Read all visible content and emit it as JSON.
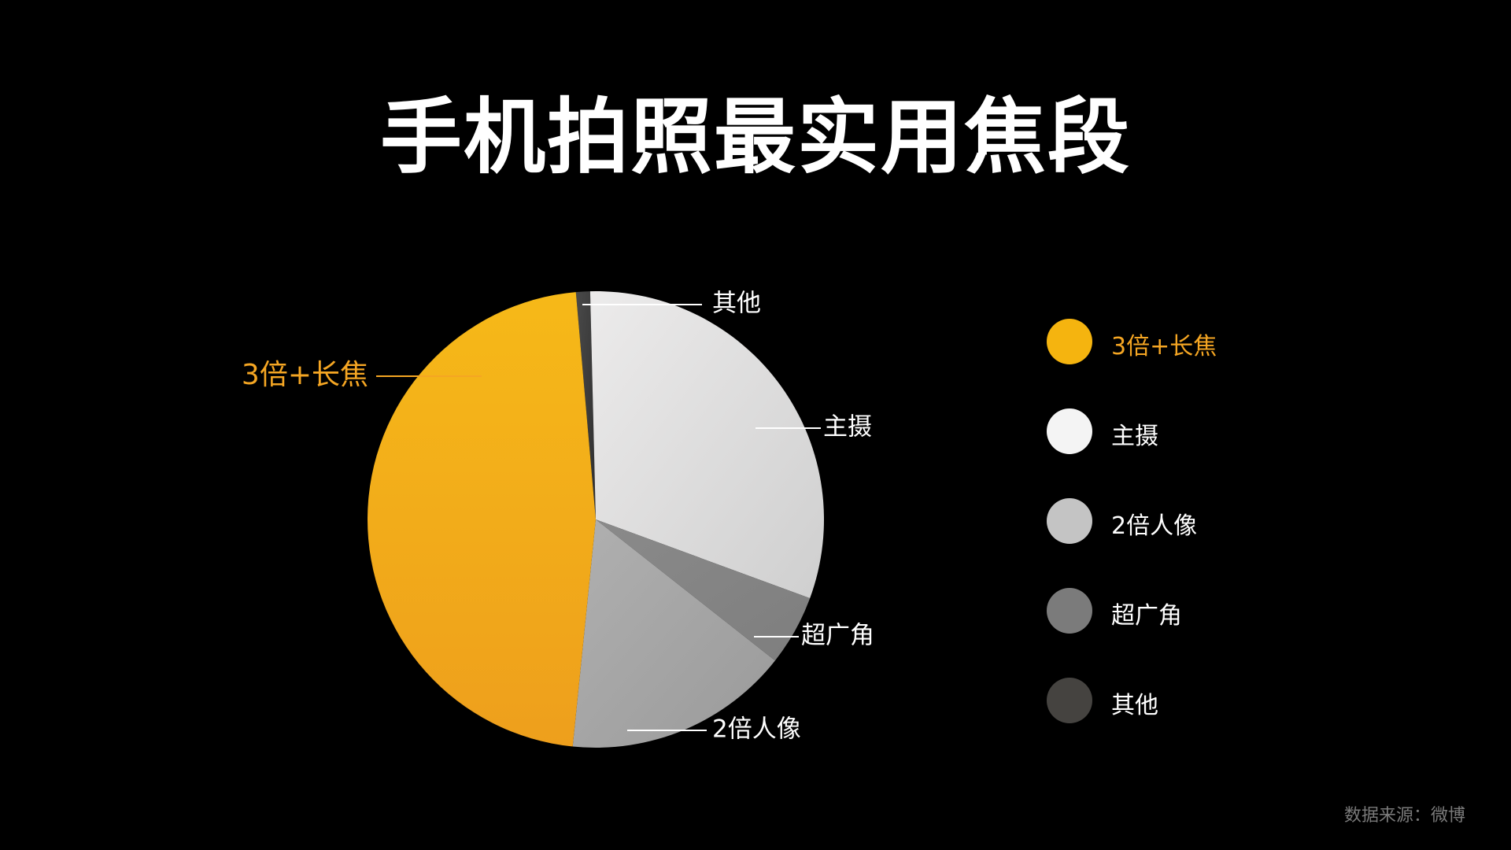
{
  "title": "手机拍照最实用焦段",
  "source": "数据来源：微博",
  "chart_data": {
    "type": "pie",
    "title": "手机拍照最实用焦段",
    "slices": [
      {
        "name": "3倍+长焦",
        "value": 47,
        "color": "#f5a623",
        "highlight": true
      },
      {
        "name": "主摄",
        "value": 31,
        "color": "#d9d9d9",
        "highlight": false
      },
      {
        "name": "超广角",
        "value": 5,
        "color": "#858585",
        "highlight": false
      },
      {
        "name": "2倍人像",
        "value": 16,
        "color": "#a3a3a3",
        "highlight": false
      },
      {
        "name": "其他",
        "value": 1,
        "color": "#3a3a3a",
        "highlight": false
      }
    ],
    "legend": [
      {
        "name": "3倍+长焦",
        "color": "#f5b40f",
        "highlight": true
      },
      {
        "name": "主摄",
        "color": "#f4f4f4",
        "highlight": false
      },
      {
        "name": "2倍人像",
        "color": "#c4c4c4",
        "highlight": false
      },
      {
        "name": "超广角",
        "color": "#7b7b7b",
        "highlight": false
      },
      {
        "name": "其他",
        "color": "#454340",
        "highlight": false
      }
    ],
    "legend_position": "right"
  }
}
